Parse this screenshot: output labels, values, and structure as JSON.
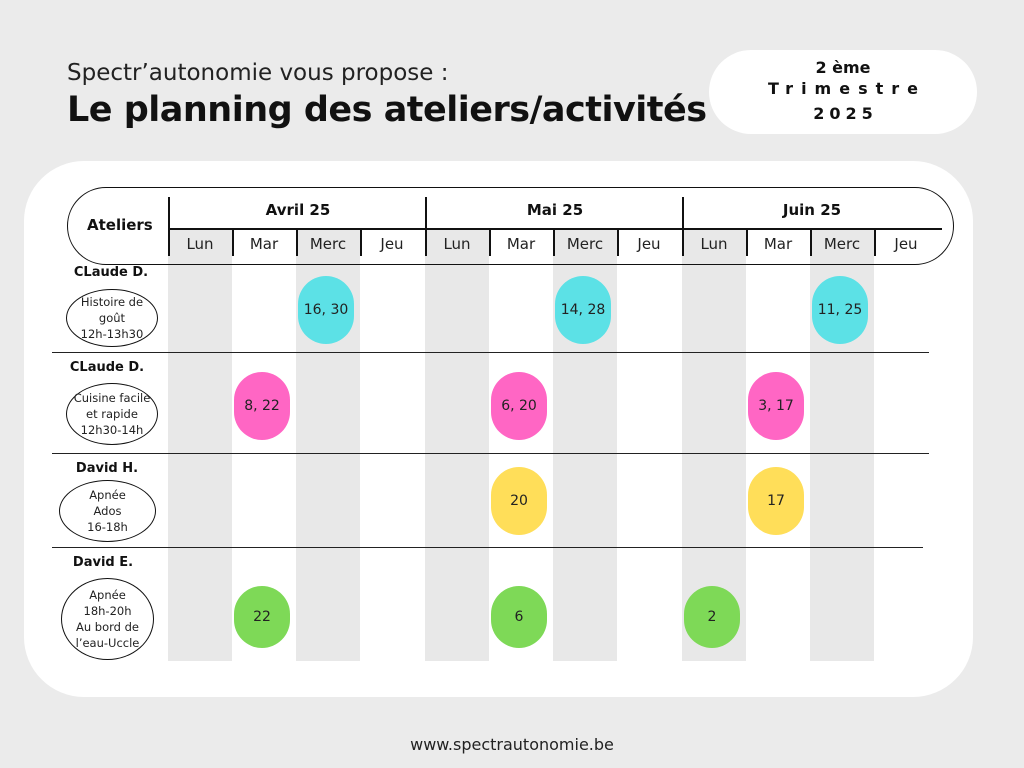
{
  "header": {
    "subtitle": "Spectr’autonomie vous propose :",
    "title": "Le planning des ateliers/activités",
    "period": {
      "line1": "2 ème",
      "line2": "Trimestre",
      "line3": "2025"
    }
  },
  "table": {
    "ateliers_label": "Ateliers",
    "months": [
      "Avril 25",
      "Mai 25",
      "Juin 25"
    ],
    "days": [
      "Lun",
      "Mar",
      "Merc",
      "Jeu"
    ]
  },
  "rows": [
    {
      "person": "CLaude D.",
      "activity": [
        "Histoire de",
        "goût",
        "12h-13h30"
      ]
    },
    {
      "person": "CLaude D.",
      "activity": [
        "Cuisine facile",
        "et  rapide",
        "12h30-14h"
      ]
    },
    {
      "person": "David H.",
      "activity": [
        "Apnée",
        "Ados",
        "16-18h"
      ]
    },
    {
      "person": "David E.",
      "activity": [
        "Apnée",
        "18h-20h",
        "Au bord de",
        "l’eau-Uccle"
      ]
    }
  ],
  "sessions": [
    {
      "row": 0,
      "month": "Avril 25",
      "day": "Merc",
      "dates": "16, 30",
      "color": "#5ce1e6"
    },
    {
      "row": 0,
      "month": "Mai 25",
      "day": "Merc",
      "dates": "14, 28",
      "color": "#5ce1e6"
    },
    {
      "row": 0,
      "month": "Juin 25",
      "day": "Merc",
      "dates": "11, 25",
      "color": "#5ce1e6"
    },
    {
      "row": 1,
      "month": "Avril 25",
      "day": "Mar",
      "dates": "8, 22",
      "color": "#ff66c4"
    },
    {
      "row": 1,
      "month": "Mai 25",
      "day": "Mar",
      "dates": "6, 20",
      "color": "#ff66c4"
    },
    {
      "row": 1,
      "month": "Juin 25",
      "day": "Mar",
      "dates": "3, 17",
      "color": "#ff66c4"
    },
    {
      "row": 2,
      "month": "Mai 25",
      "day": "Mar",
      "dates": "20",
      "color": "#ffde59"
    },
    {
      "row": 2,
      "month": "Juin 25",
      "day": "Mar",
      "dates": "17",
      "color": "#ffde59"
    },
    {
      "row": 3,
      "month": "Avril 25",
      "day": "Mar",
      "dates": "22",
      "color": "#7ed957"
    },
    {
      "row": 3,
      "month": "Mai 25",
      "day": "Mar",
      "dates": "6",
      "color": "#7ed957"
    },
    {
      "row": 3,
      "month": "Juin 25",
      "day": "Lun",
      "dates": "2",
      "color": "#7ed957"
    }
  ],
  "footer": {
    "website": "www.spectrautonomie.be"
  },
  "colors": {
    "background": "#ebebeb",
    "card": "#ffffff",
    "stripe": "#e8e8e8"
  }
}
